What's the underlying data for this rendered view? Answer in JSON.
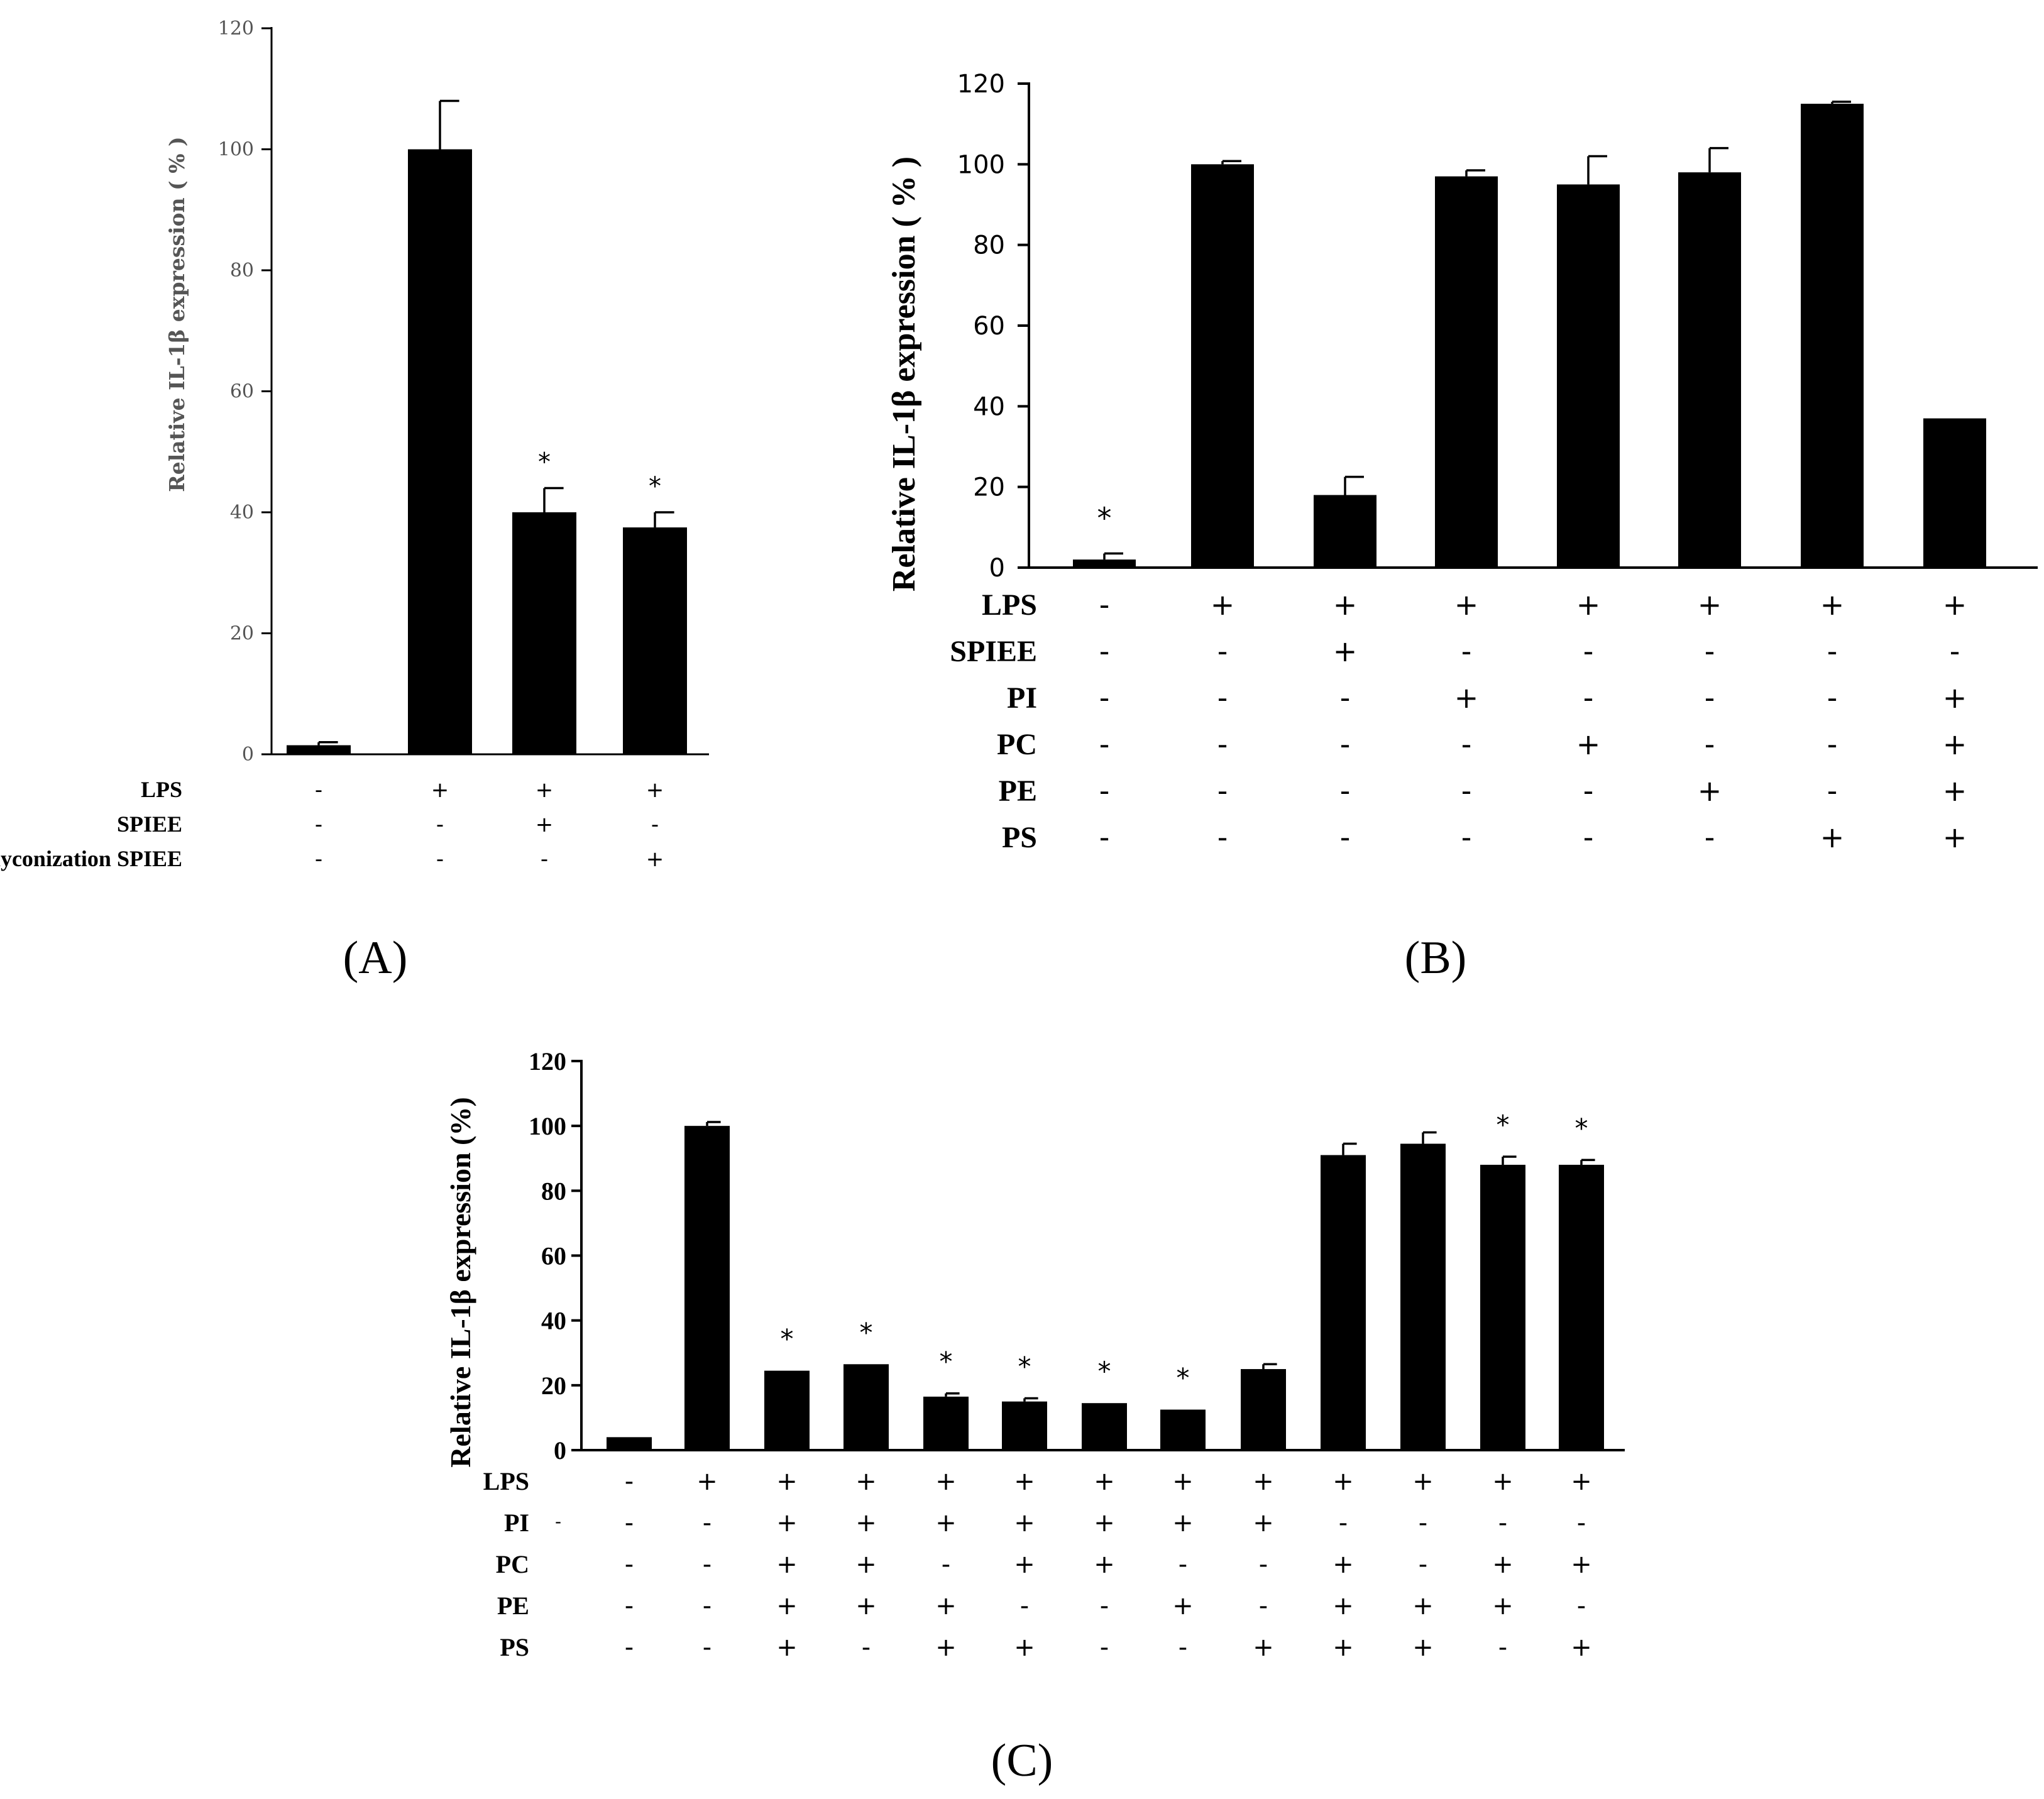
{
  "chart_data": [
    {
      "panel": "A",
      "type": "bar",
      "panel_label": "(A)",
      "ylabel": "Relative IL-1β expression ( % )",
      "ylim": [
        0,
        120
      ],
      "yticks": [
        0,
        20,
        40,
        60,
        80,
        100,
        120
      ],
      "values": [
        1.5,
        100,
        40,
        37.5
      ],
      "errors": [
        0.5,
        8,
        4,
        2.5
      ],
      "significance": [
        "",
        "",
        "*",
        "*"
      ],
      "treatments": [
        {
          "name": "LPS",
          "signs": [
            "-",
            "+",
            "+",
            "+"
          ]
        },
        {
          "name": "SPIEE",
          "signs": [
            "-",
            "-",
            "+",
            "-"
          ]
        },
        {
          "name": "Aglyconization SPIEE",
          "signs": [
            "-",
            "-",
            "-",
            "+"
          ]
        }
      ]
    },
    {
      "panel": "B",
      "type": "bar",
      "panel_label": "(B)",
      "ylabel": "Relative IL-1β  expression ( % )",
      "ylim": [
        0,
        120
      ],
      "yticks": [
        0,
        20,
        40,
        60,
        80,
        100,
        120
      ],
      "values": [
        2,
        100,
        18,
        97,
        95,
        98,
        115,
        37
      ],
      "errors": [
        1.5,
        0.8,
        4.5,
        1.5,
        7,
        6,
        0.5,
        0
      ],
      "significance": [
        "*",
        "",
        "",
        "",
        "",
        "",
        "",
        ""
      ],
      "treatments": [
        {
          "name": "LPS",
          "signs": [
            "-",
            "+",
            "+",
            "+",
            "+",
            "+",
            "+",
            "+"
          ]
        },
        {
          "name": "SPIEE",
          "signs": [
            "-",
            "-",
            "+",
            "-",
            "-",
            "-",
            "-",
            "-"
          ]
        },
        {
          "name": "PI",
          "signs": [
            "-",
            "-",
            "-",
            "+",
            "-",
            "-",
            "-",
            "+"
          ]
        },
        {
          "name": "PC",
          "signs": [
            "-",
            "-",
            "-",
            "-",
            "+",
            "-",
            "-",
            "+"
          ]
        },
        {
          "name": "PE",
          "signs": [
            "-",
            "-",
            "-",
            "-",
            "-",
            "+",
            "-",
            "+"
          ]
        },
        {
          "name": "PS",
          "signs": [
            "-",
            "-",
            "-",
            "-",
            "-",
            "-",
            "+",
            "+"
          ]
        }
      ]
    },
    {
      "panel": "C",
      "type": "bar",
      "panel_label": "(C)",
      "ylabel": "Relative IL-1β expression (%)",
      "ylim": [
        0,
        120
      ],
      "yticks": [
        0,
        20,
        40,
        60,
        80,
        100,
        120
      ],
      "values": [
        4,
        100,
        24.5,
        26.5,
        16.5,
        15,
        14.5,
        12.5,
        25,
        91,
        94.5,
        88,
        88
      ],
      "errors": [
        0,
        1.2,
        0,
        0,
        1,
        1,
        0,
        0,
        1.5,
        3.5,
        3.5,
        2.5,
        1.5
      ],
      "significance": [
        "",
        "",
        "*",
        "*",
        "*",
        "*",
        "*",
        "*",
        "",
        "",
        "",
        "*",
        "*"
      ],
      "treatments": [
        {
          "name": "LPS",
          "signs": [
            "-",
            "+",
            "+",
            "+",
            "+",
            "+",
            "+",
            "+",
            "+",
            "+",
            "+",
            "+",
            "+"
          ]
        },
        {
          "name": "PI",
          "signs": [
            "-",
            "-",
            "+",
            "+",
            "+",
            "+",
            "+",
            "+",
            "+",
            "-",
            "-",
            "-",
            "-"
          ]
        },
        {
          "name": "PC",
          "signs": [
            "-",
            "-",
            "+",
            "+",
            "-",
            "+",
            "+",
            "-",
            "-",
            "+",
            "-",
            "+",
            "+"
          ]
        },
        {
          "name": "PE",
          "signs": [
            "-",
            "-",
            "+",
            "+",
            "+",
            "-",
            "-",
            "+",
            "-",
            "+",
            "+",
            "+",
            "-"
          ]
        },
        {
          "name": "PS",
          "signs": [
            "-",
            "-",
            "+",
            "-",
            "+",
            "+",
            "-",
            "-",
            "+",
            "+",
            "+",
            "-",
            "+"
          ]
        }
      ],
      "stray_mark": "-"
    }
  ]
}
